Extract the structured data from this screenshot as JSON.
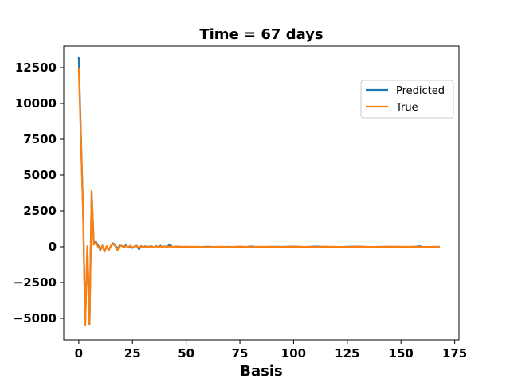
{
  "chart_data": {
    "type": "line",
    "title": "Time = 67 days",
    "xlabel": "Basis",
    "ylabel": "",
    "xlim": [
      -7,
      177
    ],
    "ylim": [
      -6500,
      14000
    ],
    "xticks": [
      0,
      25,
      50,
      75,
      100,
      125,
      150,
      175
    ],
    "yticks": [
      -5000,
      -2500,
      0,
      2500,
      5000,
      7500,
      10000,
      12500
    ],
    "ytick_labels": [
      "−5000",
      "−2500",
      "0",
      "2500",
      "5000",
      "7500",
      "10000",
      "12500"
    ],
    "grid": false,
    "legend_position": "upper right",
    "series": [
      {
        "name": "Predicted",
        "color": "#1f77b4",
        "points": [
          [
            0,
            13250
          ],
          [
            1,
            7800
          ],
          [
            2,
            2600
          ],
          [
            3,
            -5300
          ],
          [
            4,
            0
          ],
          [
            5,
            -5450
          ],
          [
            6,
            3850
          ],
          [
            7,
            200
          ],
          [
            8,
            350
          ],
          [
            9,
            100
          ],
          [
            10,
            -250
          ],
          [
            11,
            50
          ],
          [
            12,
            -300
          ],
          [
            13,
            0
          ],
          [
            14,
            -200
          ],
          [
            15,
            50
          ],
          [
            16,
            250
          ],
          [
            17,
            100
          ],
          [
            18,
            -150
          ],
          [
            19,
            100
          ],
          [
            20,
            50
          ],
          [
            21,
            0
          ],
          [
            22,
            120
          ],
          [
            23,
            -60
          ],
          [
            24,
            40
          ],
          [
            25,
            -80
          ],
          [
            26,
            30
          ],
          [
            27,
            80
          ],
          [
            28,
            -180
          ],
          [
            29,
            50
          ],
          [
            30,
            -30
          ],
          [
            31,
            40
          ],
          [
            32,
            -50
          ],
          [
            33,
            20
          ],
          [
            34,
            40
          ],
          [
            35,
            -50
          ],
          [
            36,
            60
          ],
          [
            37,
            -30
          ],
          [
            38,
            80
          ],
          [
            39,
            -20
          ],
          [
            40,
            40
          ],
          [
            41,
            -30
          ],
          [
            42,
            120
          ],
          [
            43,
            80
          ],
          [
            44,
            -40
          ],
          [
            45,
            30
          ],
          [
            46,
            0
          ],
          [
            47,
            20
          ],
          [
            48,
            -20
          ],
          [
            49,
            10
          ],
          [
            50,
            0
          ],
          [
            55,
            -20
          ],
          [
            60,
            10
          ],
          [
            65,
            -20
          ],
          [
            70,
            0
          ],
          [
            75,
            -40
          ],
          [
            80,
            20
          ],
          [
            85,
            -20
          ],
          [
            90,
            10
          ],
          [
            95,
            0
          ],
          [
            100,
            20
          ],
          [
            105,
            -10
          ],
          [
            110,
            20
          ],
          [
            115,
            0
          ],
          [
            120,
            -20
          ],
          [
            125,
            10
          ],
          [
            130,
            20
          ],
          [
            135,
            -10
          ],
          [
            140,
            0
          ],
          [
            145,
            10
          ],
          [
            150,
            0
          ],
          [
            155,
            -10
          ],
          [
            159,
            40
          ],
          [
            160,
            -20
          ],
          [
            165,
            0
          ],
          [
            168,
            0
          ]
        ]
      },
      {
        "name": "True",
        "color": "#ff7f0e",
        "points": [
          [
            0,
            12500
          ],
          [
            1,
            7500
          ],
          [
            2,
            2500
          ],
          [
            3,
            -5500
          ],
          [
            4,
            50
          ],
          [
            5,
            -5400
          ],
          [
            6,
            3900
          ],
          [
            7,
            150
          ],
          [
            8,
            300
          ],
          [
            9,
            0
          ],
          [
            10,
            -200
          ],
          [
            11,
            100
          ],
          [
            12,
            -350
          ],
          [
            13,
            50
          ],
          [
            14,
            -250
          ],
          [
            15,
            100
          ],
          [
            16,
            200
          ],
          [
            17,
            50
          ],
          [
            18,
            -250
          ],
          [
            19,
            60
          ],
          [
            20,
            80
          ],
          [
            21,
            -40
          ],
          [
            22,
            60
          ],
          [
            23,
            -20
          ],
          [
            24,
            80
          ],
          [
            25,
            -40
          ],
          [
            26,
            20
          ],
          [
            27,
            60
          ],
          [
            28,
            -60
          ],
          [
            29,
            10
          ],
          [
            30,
            20
          ],
          [
            31,
            -20
          ],
          [
            32,
            30
          ],
          [
            33,
            -10
          ],
          [
            34,
            20
          ],
          [
            35,
            -20
          ],
          [
            36,
            30
          ],
          [
            37,
            0
          ],
          [
            38,
            20
          ],
          [
            39,
            -10
          ],
          [
            40,
            30
          ],
          [
            41,
            0
          ],
          [
            42,
            10
          ],
          [
            43,
            20
          ],
          [
            44,
            -10
          ],
          [
            45,
            20
          ],
          [
            46,
            0
          ],
          [
            47,
            10
          ],
          [
            48,
            0
          ],
          [
            49,
            -10
          ],
          [
            50,
            10
          ],
          [
            55,
            0
          ],
          [
            60,
            -20
          ],
          [
            65,
            10
          ],
          [
            70,
            -10
          ],
          [
            75,
            20
          ],
          [
            80,
            -20
          ],
          [
            85,
            10
          ],
          [
            90,
            0
          ],
          [
            95,
            -10
          ],
          [
            100,
            10
          ],
          [
            105,
            0
          ],
          [
            110,
            -10
          ],
          [
            115,
            10
          ],
          [
            120,
            0
          ],
          [
            125,
            -10
          ],
          [
            130,
            10
          ],
          [
            135,
            0
          ],
          [
            140,
            -10
          ],
          [
            145,
            10
          ],
          [
            150,
            0
          ],
          [
            155,
            10
          ],
          [
            160,
            -10
          ],
          [
            165,
            0
          ],
          [
            168,
            0
          ]
        ]
      }
    ]
  }
}
